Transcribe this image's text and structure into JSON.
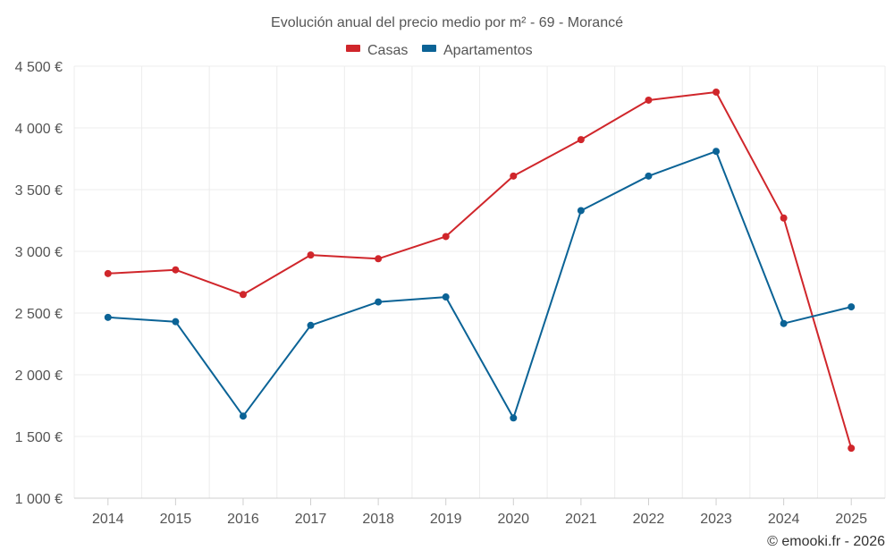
{
  "chart_data": {
    "type": "line",
    "title": "Evolución anual del precio medio por m² - 69 - Morancé",
    "categories": [
      "2014",
      "2015",
      "2016",
      "2017",
      "2018",
      "2019",
      "2020",
      "2021",
      "2022",
      "2023",
      "2024",
      "2025"
    ],
    "series": [
      {
        "name": "Casas",
        "color": "#d0262b",
        "values": [
          2820,
          2850,
          2650,
          2970,
          2940,
          3120,
          3610,
          3905,
          4225,
          4290,
          3270,
          1405
        ]
      },
      {
        "name": "Apartamentos",
        "color": "#0b6396",
        "values": [
          2465,
          2430,
          1665,
          2400,
          2590,
          2630,
          1650,
          3330,
          3610,
          3810,
          2415,
          2550
        ]
      }
    ],
    "ylim": [
      1000,
      4500
    ],
    "yticks": [
      1000,
      1500,
      2000,
      2500,
      3000,
      3500,
      4000,
      4500
    ],
    "ytick_labels": [
      "1 000 €",
      "1 500 €",
      "2 000 €",
      "2 500 €",
      "3 000 €",
      "3 500 €",
      "4 000 €",
      "4 500 €"
    ],
    "xlabel": "",
    "ylabel": "",
    "grid": true,
    "legend_position": "top-center"
  },
  "credit": "© emooki.fr - 2026"
}
